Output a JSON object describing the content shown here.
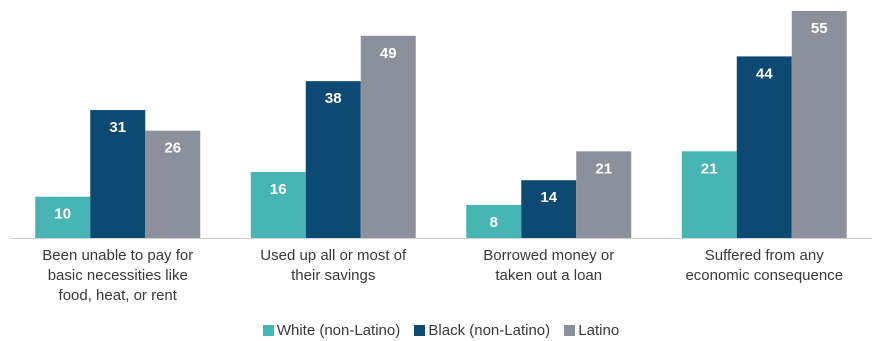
{
  "chart_data": {
    "type": "bar",
    "categories": [
      [
        "Been unable to pay for",
        "basic necessities like",
        "food, heat, or rent"
      ],
      [
        "Used up all or most of",
        "their savings"
      ],
      [
        "Borrowed money or",
        "taken out a loan"
      ],
      [
        "Suffered from any",
        "economic consequence"
      ]
    ],
    "series": [
      {
        "name": "White (non-Latino)",
        "color": "#46b5b3",
        "values": [
          10,
          16,
          8,
          21
        ]
      },
      {
        "name": "Black (non-Latino)",
        "color": "#0d4a73",
        "values": [
          31,
          38,
          14,
          44
        ]
      },
      {
        "name": "Latino",
        "color": "#8c909b",
        "values": [
          26,
          49,
          21,
          55
        ]
      }
    ],
    "ylim": [
      0,
      55
    ],
    "grid": false,
    "legend_position": "bottom",
    "baseline_color": "#cfcfcf"
  }
}
